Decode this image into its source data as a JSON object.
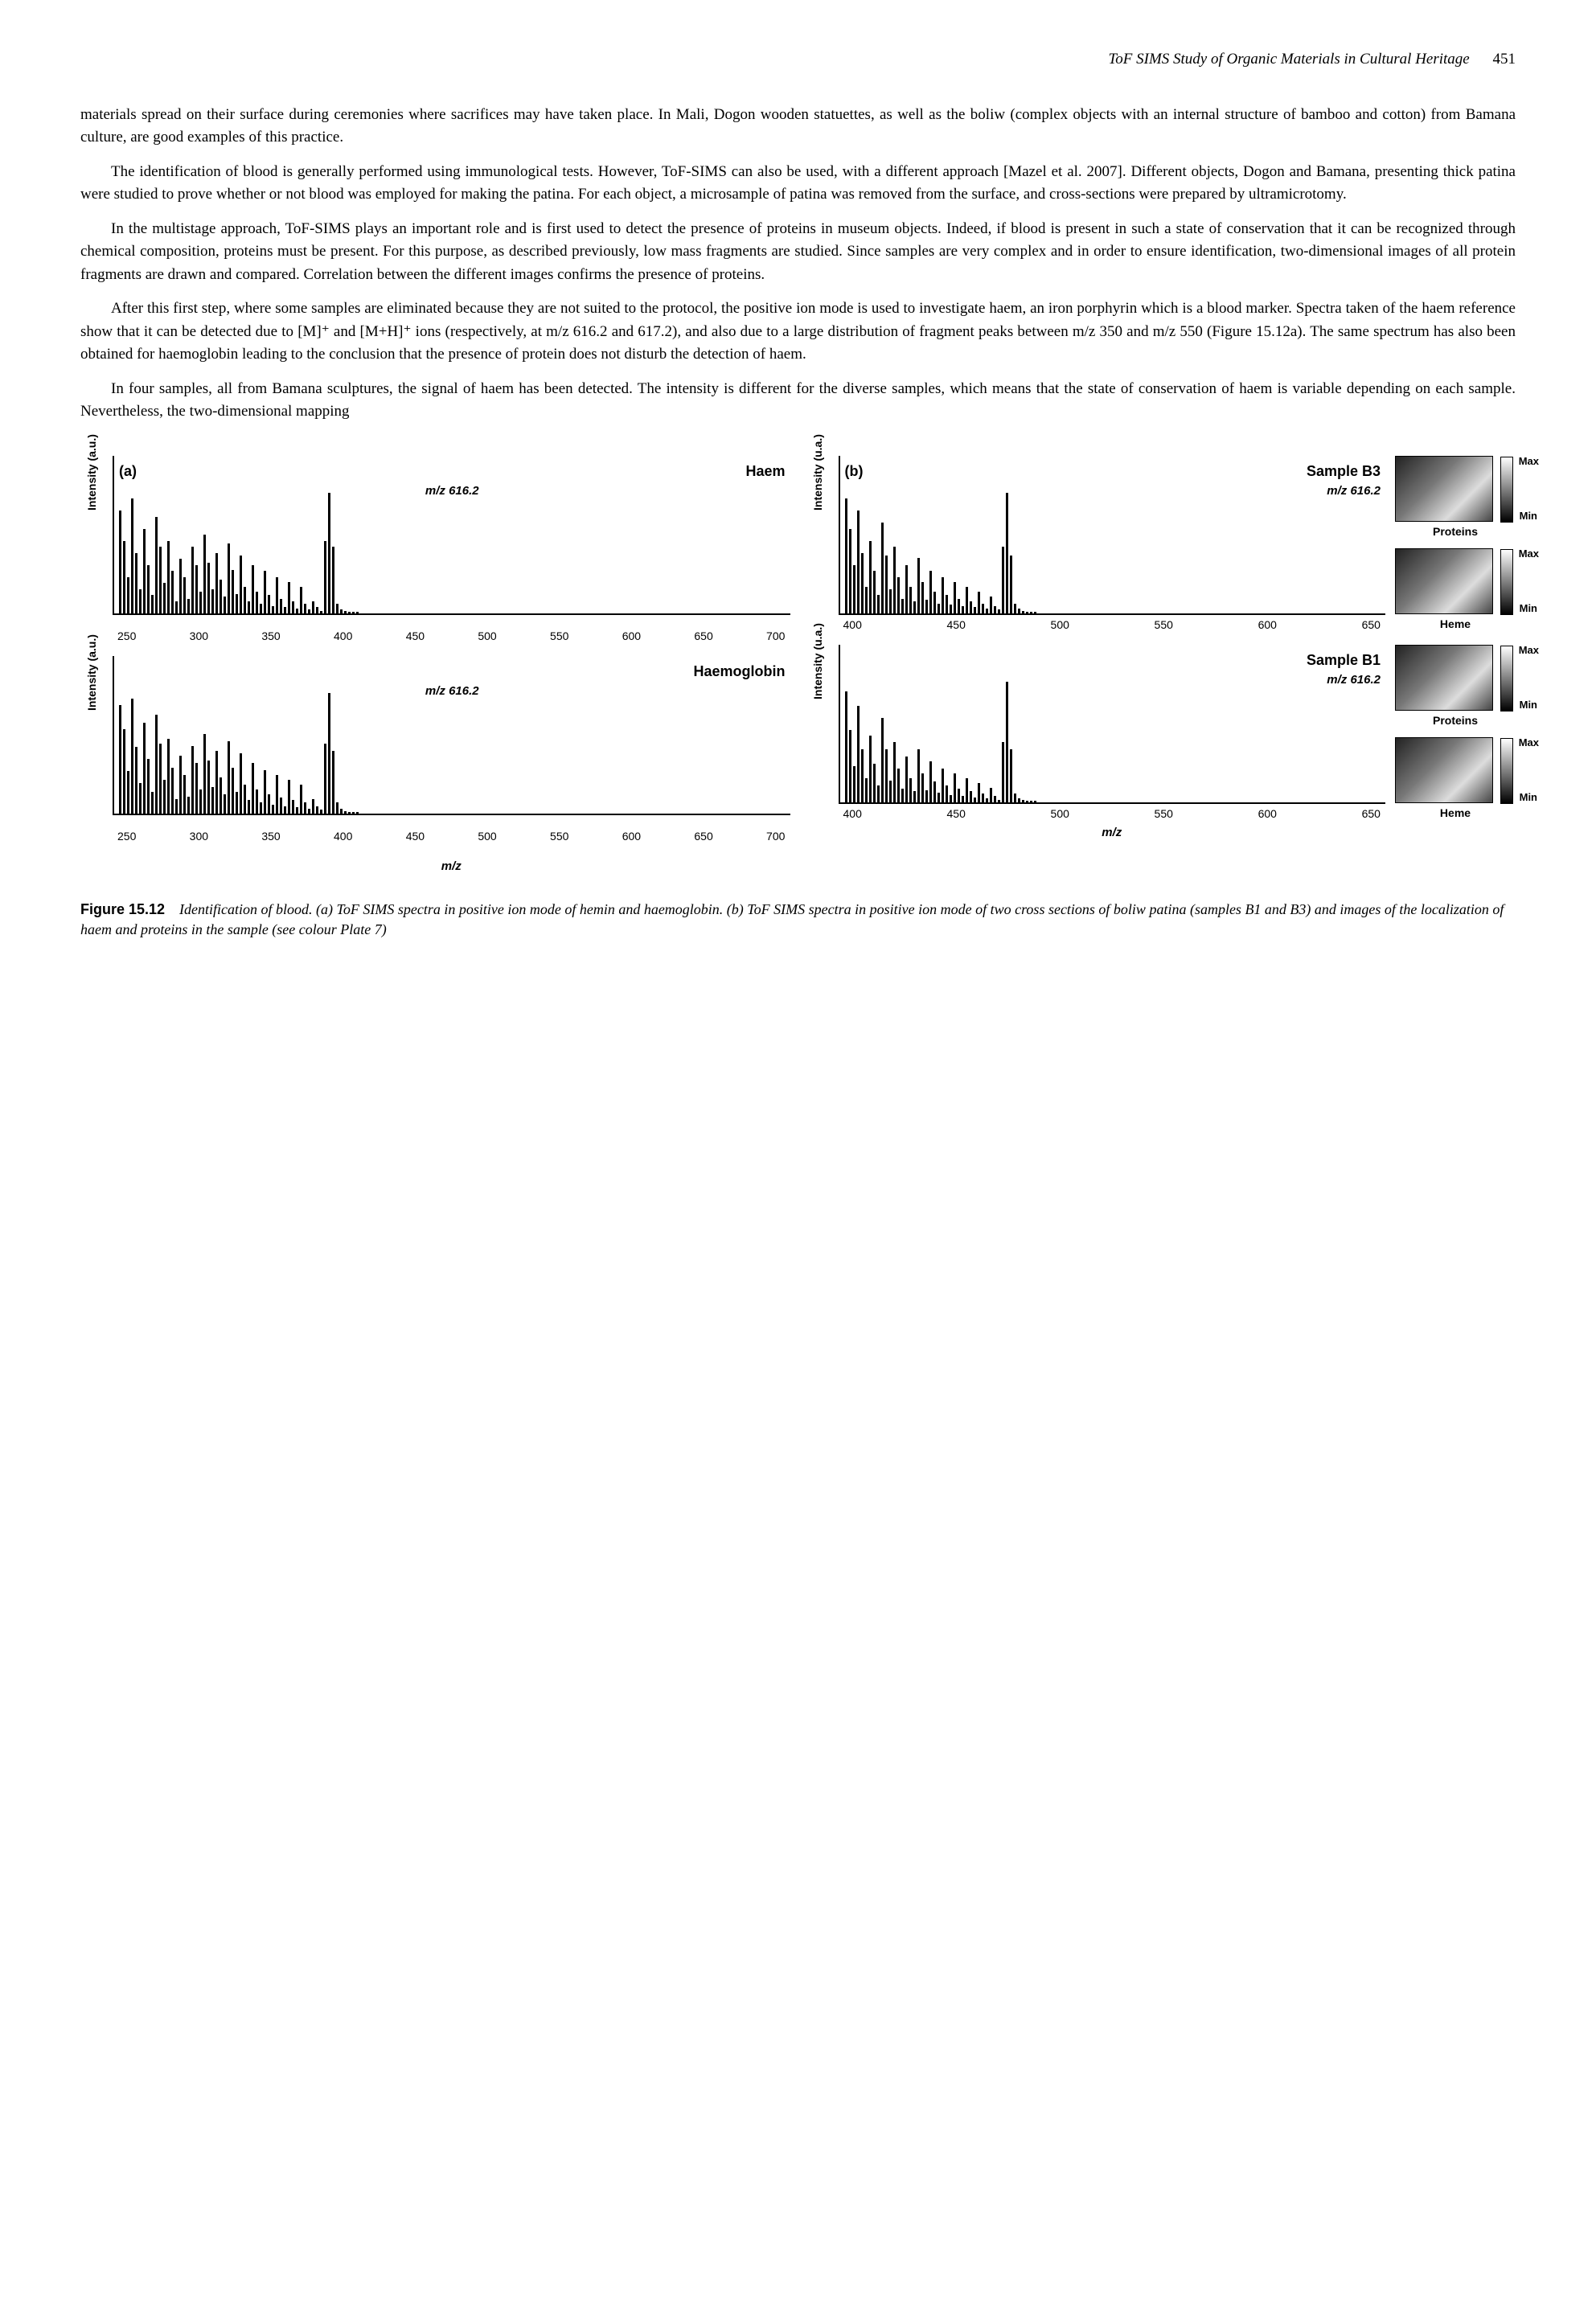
{
  "runningHead": {
    "title": "ToF SIMS Study of Organic Materials in Cultural Heritage",
    "page": "451"
  },
  "paragraphs": {
    "p1": "materials spread on their surface during ceremonies where sacrifices may have taken place. In Mali, Dogon wooden statuettes, as well as the boliw (complex objects with an internal structure of bamboo and cotton) from Bamana culture, are good examples of this practice.",
    "p2": "The identification of blood is generally performed using immunological tests. However, ToF-SIMS can also be used, with a different approach [Mazel et al. 2007]. Different objects, Dogon and Bamana, presenting thick patina were studied to prove whether or not blood was employed for making the patina. For each object, a microsample of patina was removed from the surface, and cross-sections were prepared by ultramicrotomy.",
    "p3": "In the multistage approach, ToF-SIMS plays an important role and is first used to detect the presence of proteins in museum objects. Indeed, if blood is present in such a state of conservation that it can be recognized through chemical composition, proteins must be present. For this purpose, as described previously, low mass fragments are studied. Since samples are very complex and in order to ensure identification, two-dimensional images of all protein fragments are drawn and compared. Correlation between the different images confirms the presence of proteins.",
    "p4": "After this first step, where some samples are eliminated because they are not suited to the protocol, the positive ion mode is used to investigate haem, an iron porphyrin which is a blood marker. Spectra taken of the haem reference show that it can be detected due to [M]⁺ and [M+H]⁺ ions (respectively, at m/z 616.2 and 617.2), and also due to a large distribution of fragment peaks between m/z 350 and m/z 550 (Figure 15.12a). The same spectrum has also been obtained for haemoglobin leading to the conclusion that the presence of protein does not disturb the detection of haem.",
    "p5": "In four samples, all from Bamana sculptures, the signal of haem has been detected. The intensity is different for the diverse samples, which means that the state of conservation of haem is variable depending on each sample. Nevertheless, the two-dimensional mapping"
  },
  "figure": {
    "number": "Figure 15.12",
    "caption": "Identification of blood. (a) ToF SIMS spectra in positive ion mode of hemin and haemoglobin. (b) ToF SIMS spectra in positive ion mode of two cross sections of boliw patina (samples B1 and B3) and images of the localization of haem and proteins in the sample (see colour Plate 7)",
    "panelA": {
      "letter": "(a)",
      "ylabel": "Intensity (a.u.)",
      "xlabel": "m/z",
      "charts": [
        {
          "title": "Haem",
          "peak_label": "m/z 616.2",
          "xticks": [
            "250",
            "300",
            "350",
            "400",
            "450",
            "500",
            "550",
            "600",
            "650",
            "700"
          ],
          "bars_pct": [
            85,
            60,
            30,
            95,
            50,
            20,
            70,
            40,
            15,
            80,
            55,
            25,
            60,
            35,
            10,
            45,
            30,
            12,
            55,
            40,
            18,
            65,
            42,
            20,
            50,
            28,
            14,
            58,
            36,
            16,
            48,
            22,
            10,
            40,
            18,
            8,
            35,
            15,
            6,
            30,
            12,
            5,
            26,
            10,
            4,
            22,
            8,
            3,
            10,
            5,
            2,
            60,
            100,
            55,
            8,
            3,
            2,
            1,
            1,
            1
          ]
        },
        {
          "title": "Haemoglobin",
          "peak_label": "m/z 616.2",
          "xticks": [
            "250",
            "300",
            "350",
            "400",
            "450",
            "500",
            "550",
            "600",
            "650",
            "700"
          ],
          "bars_pct": [
            90,
            70,
            35,
            95,
            55,
            25,
            75,
            45,
            18,
            82,
            58,
            28,
            62,
            38,
            12,
            48,
            32,
            14,
            56,
            42,
            20,
            66,
            44,
            22,
            52,
            30,
            16,
            60,
            38,
            18,
            50,
            24,
            11,
            42,
            20,
            9,
            36,
            16,
            7,
            32,
            13,
            6,
            28,
            11,
            5,
            24,
            9,
            4,
            12,
            6,
            3,
            58,
            100,
            52,
            9,
            4,
            2,
            1,
            1,
            1
          ]
        }
      ]
    },
    "panelB": {
      "letter": "(b)",
      "ylabel": "Intensity (u.a.)",
      "xlabel": "m/z",
      "charts": [
        {
          "title": "Sample B3",
          "peak_label": "m/z 616.2",
          "xticks": [
            "400",
            "450",
            "500",
            "550",
            "600",
            "650"
          ],
          "bars_pct": [
            95,
            70,
            40,
            85,
            50,
            22,
            60,
            35,
            15,
            75,
            48,
            20,
            55,
            30,
            12,
            40,
            22,
            10,
            46,
            26,
            11,
            35,
            18,
            8,
            30,
            15,
            7,
            26,
            12,
            6,
            22,
            10,
            5,
            18,
            8,
            4,
            14,
            6,
            3,
            55,
            100,
            48,
            8,
            4,
            2,
            1,
            1,
            1
          ]
        },
        {
          "title": "Sample B1",
          "peak_label": "m/z 616.2",
          "xticks": [
            "400",
            "450",
            "500",
            "550",
            "600",
            "650"
          ],
          "bars_pct": [
            92,
            60,
            30,
            80,
            44,
            20,
            55,
            32,
            14,
            70,
            44,
            18,
            50,
            28,
            11,
            38,
            20,
            9,
            44,
            24,
            10,
            34,
            17,
            8,
            28,
            14,
            6,
            24,
            11,
            5,
            20,
            9,
            4,
            16,
            7,
            3,
            12,
            5,
            2,
            50,
            100,
            44,
            7,
            3,
            2,
            1,
            1,
            1
          ]
        }
      ],
      "thumbs": [
        {
          "caption": "Proteins",
          "max": "Max",
          "min": "Min"
        },
        {
          "caption": "Heme",
          "max": "Max",
          "min": "Min"
        },
        {
          "caption": "Proteins",
          "max": "Max",
          "min": "Min"
        },
        {
          "caption": "Heme",
          "max": "Max",
          "min": "Min"
        }
      ]
    }
  }
}
